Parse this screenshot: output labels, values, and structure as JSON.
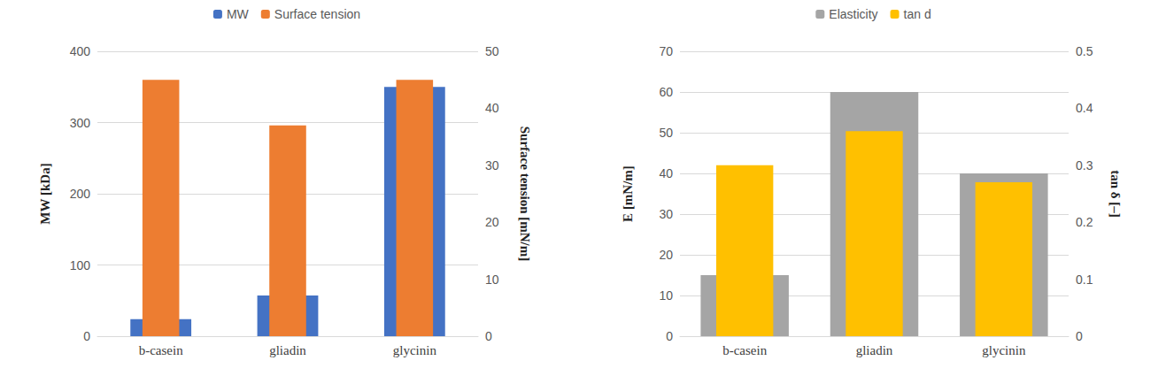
{
  "chart_data": [
    {
      "type": "bar",
      "categories": [
        "b-casein",
        "gliadin",
        "glycinin"
      ],
      "series": [
        {
          "name": "MW",
          "color": "#4472c4",
          "values": [
            24,
            57,
            350
          ],
          "axis": "y"
        },
        {
          "name": "Surface tension",
          "color": "#ed7d31",
          "values": [
            45,
            37,
            45
          ],
          "axis": "y2"
        }
      ],
      "y_label": "MW [kDa]",
      "y2_label": "Surface tension [mN/m]",
      "ylim": [
        0,
        400
      ],
      "yticks": [
        0,
        100,
        200,
        300,
        400
      ],
      "y2lim": [
        0,
        50
      ],
      "y2ticks": [
        0,
        10,
        20,
        30,
        40,
        50
      ],
      "legend": "top",
      "grid": true
    },
    {
      "type": "bar",
      "categories": [
        "b-casein",
        "gliadin",
        "glycinin"
      ],
      "series": [
        {
          "name": "Elasticity",
          "color": "#a5a5a5",
          "values": [
            15,
            60,
            40
          ],
          "axis": "y"
        },
        {
          "name": "tan d",
          "color": "#ffc000",
          "values": [
            0.3,
            0.36,
            0.27
          ],
          "axis": "y2"
        }
      ],
      "y_label": "E [mN/m]",
      "y2_label": "tan δ [–]",
      "ylim": [
        0,
        70
      ],
      "yticks": [
        0,
        10,
        20,
        30,
        40,
        50,
        60,
        70
      ],
      "y2lim": [
        0,
        0.5
      ],
      "y2ticks": [
        0,
        0.1,
        0.2,
        0.3,
        0.4,
        0.5
      ],
      "legend": "top",
      "grid": true
    }
  ]
}
